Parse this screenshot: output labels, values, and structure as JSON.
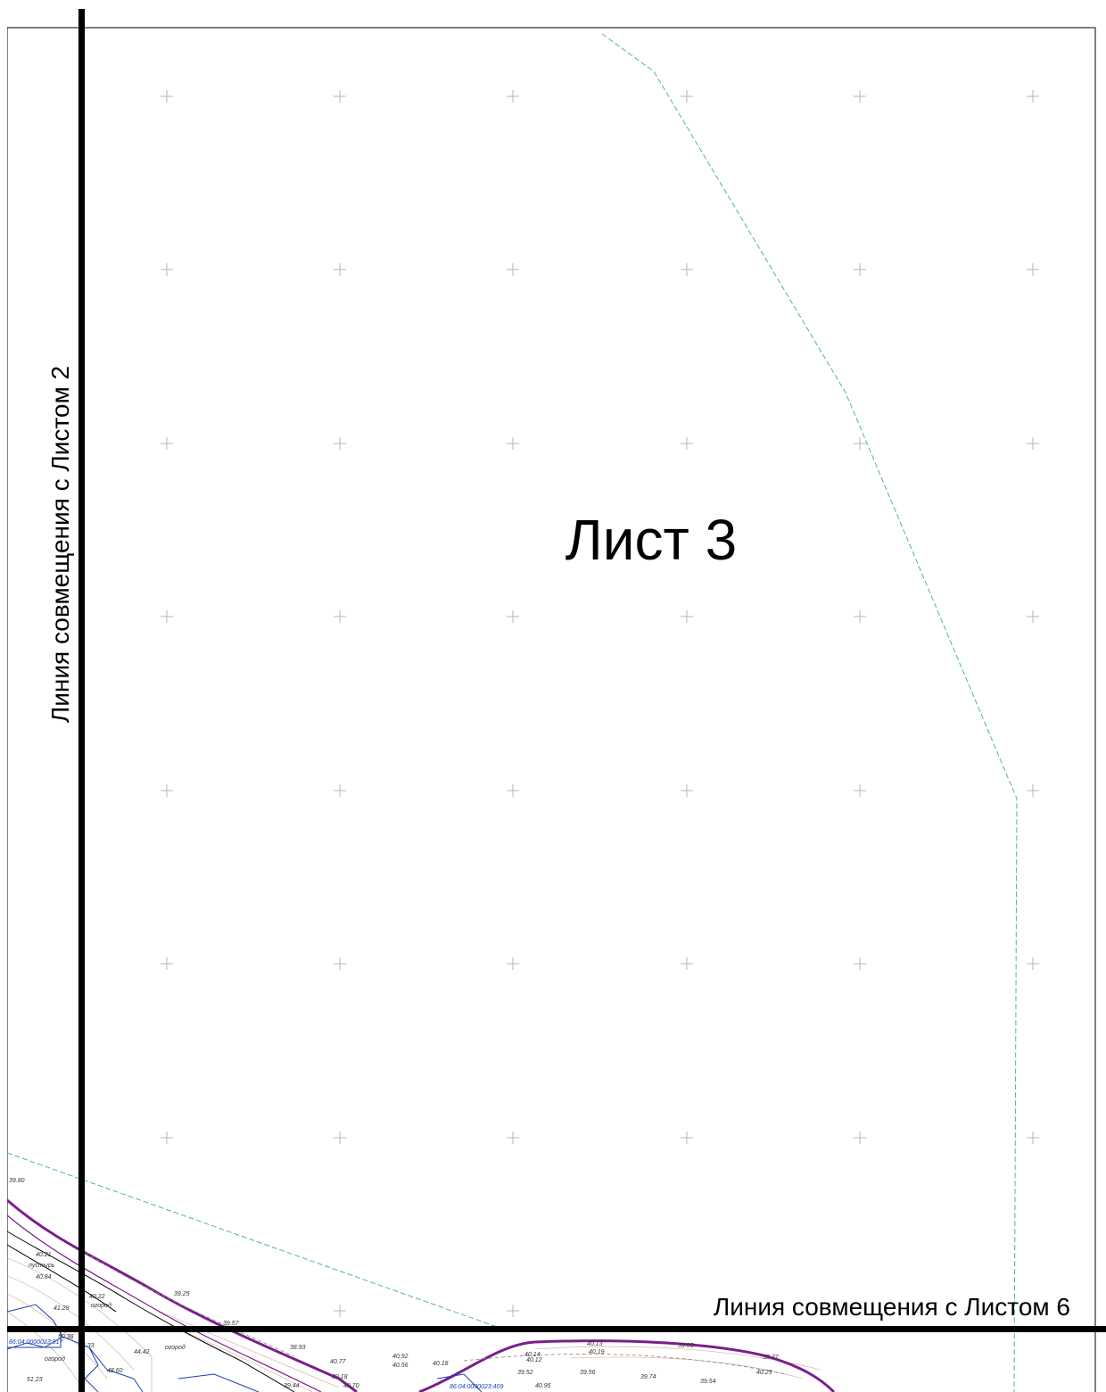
{
  "sheet": {
    "title": "Лист 3",
    "join_left": "Линия совмещения с Листом 2",
    "join_bottom": "Линия совмещения с Листом 6"
  },
  "colors": {
    "frame": "#000000",
    "grid_cross": "#b5b5b5",
    "boundary_dashed": "#4fb3a6",
    "red_line": "#7a1f8a",
    "cadastral": "#1a3fb5",
    "contour": "#c9a98a"
  },
  "elevations": [
    "39.80",
    "40.21",
    "40.84",
    "41.29",
    "39.25",
    "39.57",
    "38.93",
    "40.77",
    "39.18",
    "40.70",
    "39.44",
    "40.18",
    "40.92",
    "40.56",
    "40.14",
    "40.12",
    "40.13",
    "40.19",
    "39.52",
    "39.56",
    "40.95",
    "39.74",
    "39.65",
    "39.54",
    "38.77",
    "40.23",
    "44.33",
    "44.42",
    "48.60",
    "51.23",
    "50.38",
    "40.22"
  ],
  "map_labels": {
    "wasteland": "пустырь",
    "garden": "огород"
  },
  "cadastral_numbers": [
    "86:04:0000023:917",
    "86:04:0000023:409"
  ]
}
